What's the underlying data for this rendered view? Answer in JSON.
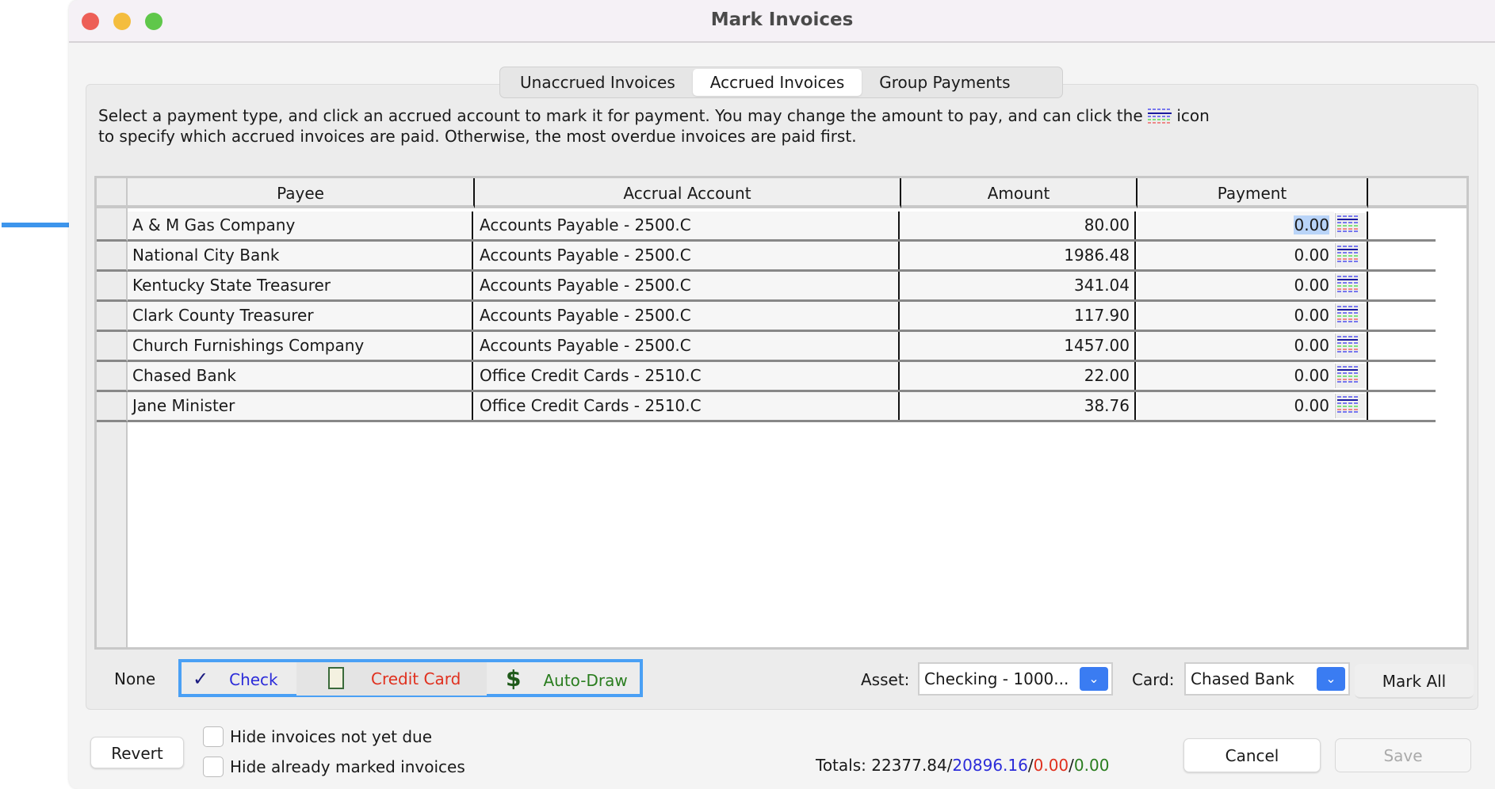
{
  "window": {
    "title": "Mark Invoices"
  },
  "tabs": [
    {
      "label": "Unaccrued Invoices"
    },
    {
      "label": "Accrued Invoices",
      "active": true
    },
    {
      "label": "Group Payments"
    }
  ],
  "instructions": {
    "line1_a": "Select a payment type, and click an accrued account to mark it for payment. You may change the amount to pay, and can click the",
    "line1_b": "icon",
    "line2": "to specify which accrued invoices are paid. Otherwise, the most overdue invoices are paid first."
  },
  "table": {
    "columns": [
      "Payee",
      "Accrual Account",
      "Amount",
      "Payment"
    ],
    "rows": [
      {
        "payee": "A & M Gas Company",
        "account": "Accounts Payable - 2500.C",
        "amount": "80.00",
        "payment": "0.00",
        "selected": true
      },
      {
        "payee": "National City Bank",
        "account": "Accounts Payable - 2500.C",
        "amount": "1986.48",
        "payment": "0.00"
      },
      {
        "payee": "Kentucky State Treasurer",
        "account": "Accounts Payable - 2500.C",
        "amount": "341.04",
        "payment": "0.00"
      },
      {
        "payee": "Clark County Treasurer",
        "account": "Accounts Payable - 2500.C",
        "amount": "117.90",
        "payment": "0.00"
      },
      {
        "payee": "Church Furnishings Company",
        "account": "Accounts Payable - 2500.C",
        "amount": "1457.00",
        "payment": "0.00"
      },
      {
        "payee": "Chased Bank",
        "account": "Office Credit Cards - 2510.C",
        "amount": "22.00",
        "payment": "0.00"
      },
      {
        "payee": "Jane Minister",
        "account": "Office Credit Cards - 2510.C",
        "amount": "38.76",
        "payment": "0.00"
      }
    ]
  },
  "payment_types": {
    "none": "None",
    "check": "Check",
    "credit_card": "Credit Card",
    "auto_draw": "Auto-Draw",
    "check_symbol": "✓",
    "auto_draw_symbol": "$"
  },
  "asset": {
    "label": "Asset:",
    "value": "Checking - 1000..."
  },
  "card": {
    "label": "Card:",
    "value": "Chased Bank"
  },
  "mark_all": "Mark All",
  "revert": "Revert",
  "options": {
    "hide_not_due": "Hide invoices not yet due",
    "hide_marked": "Hide already marked invoices"
  },
  "totals": {
    "label": "Totals: ",
    "t1": "22377.84",
    "sep": "/",
    "t2": "20896.16",
    "t3": "0.00",
    "t4": "0.00"
  },
  "cancel": "Cancel",
  "save": "Save",
  "colors": {
    "accent": "#4aa0f5",
    "check": "#2b2bd9",
    "credit": "#e0301e",
    "autodraw": "#2a7d1f",
    "selection": "#b9d4f8"
  }
}
